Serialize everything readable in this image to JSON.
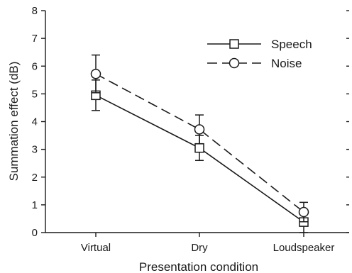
{
  "chart_data": {
    "type": "line",
    "xlabel": "Presentation condition",
    "ylabel": "Summation effect (dB)",
    "categories": [
      "Virtual",
      "Dry",
      "Loudspeaker"
    ],
    "ylim": [
      0,
      8
    ],
    "yticks": [
      0,
      1,
      2,
      3,
      4,
      5,
      6,
      7,
      8
    ],
    "grid": false,
    "legend_position": "top-right",
    "series": [
      {
        "name": "Speech",
        "marker": "square",
        "line_style": "solid",
        "values": [
          4.95,
          3.05,
          0.38
        ],
        "error": [
          0.55,
          0.45,
          0.38
        ]
      },
      {
        "name": "Noise",
        "marker": "circle",
        "line_style": "dashed",
        "values": [
          5.72,
          3.72,
          0.74
        ],
        "error": [
          0.68,
          0.52,
          0.35
        ]
      }
    ],
    "colors": {
      "ink": "#1a1a1a",
      "marker_fill": "#ffffff"
    }
  }
}
